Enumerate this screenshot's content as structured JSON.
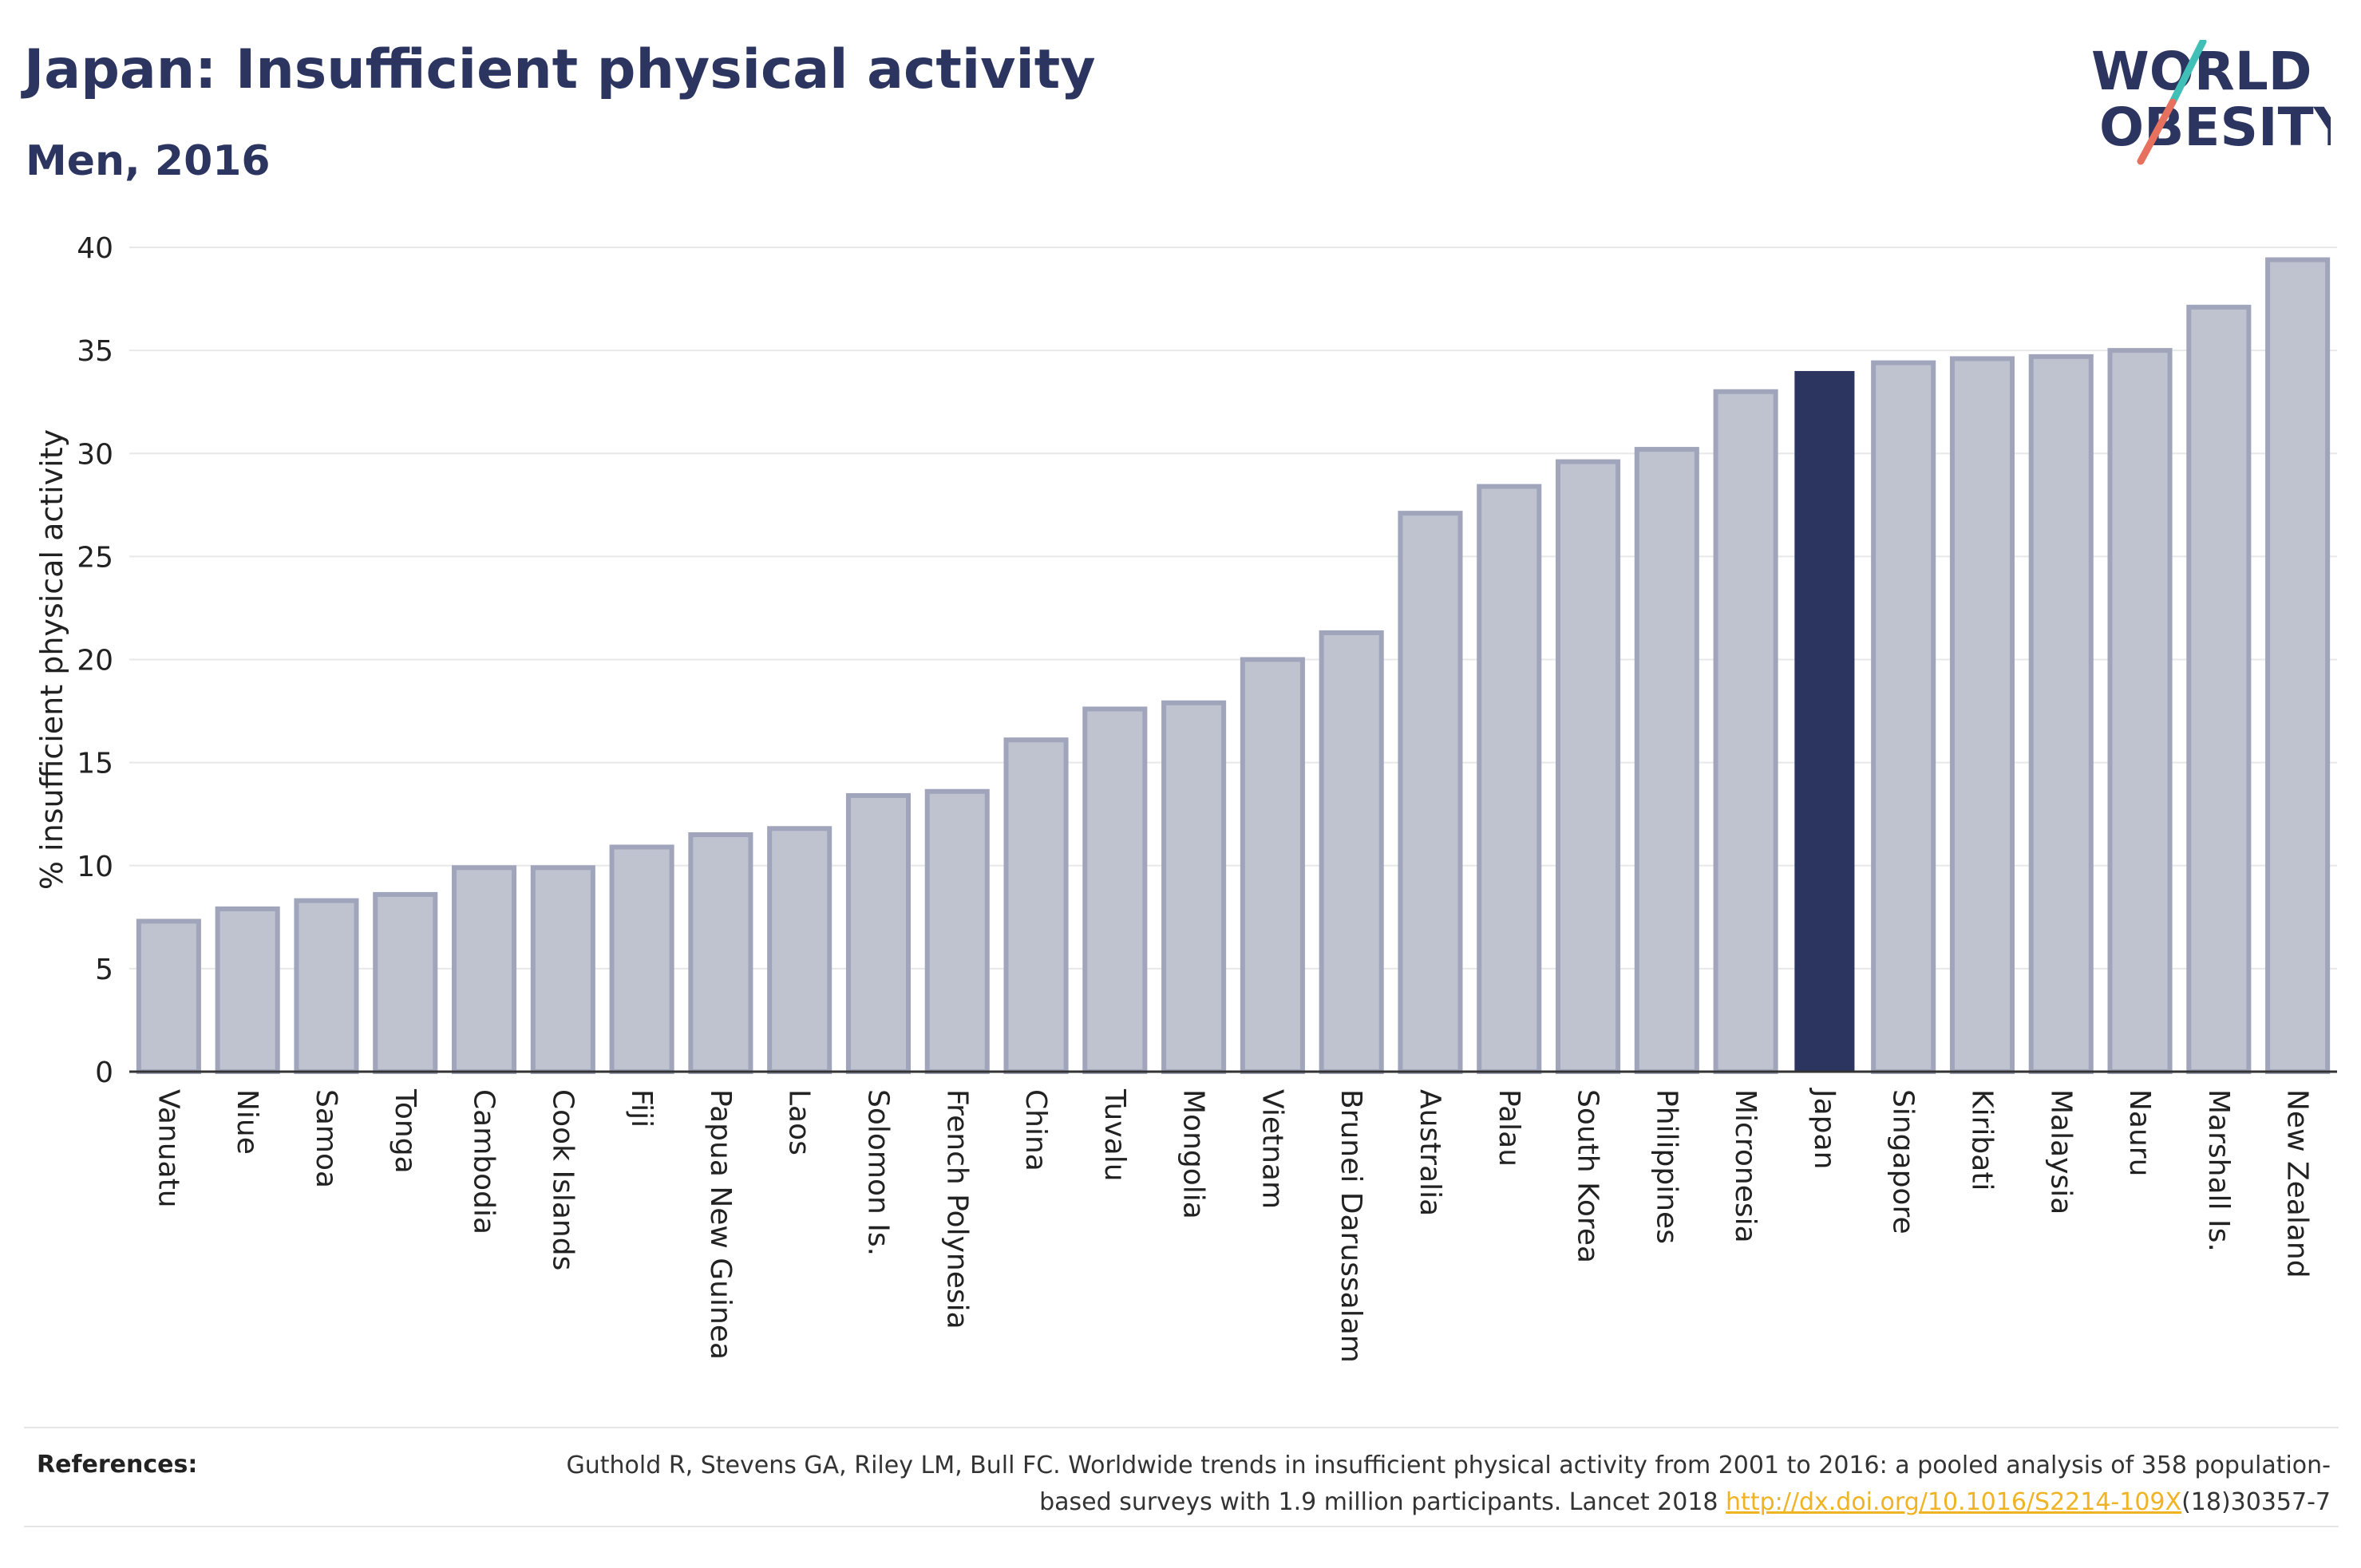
{
  "header": {
    "title": "Japan: Insufficient physical activity",
    "subtitle": "Men, 2016"
  },
  "logo": {
    "line1": "WORLD",
    "line2": "OBESITY",
    "text_color": "#2b3560",
    "slash_colors": [
      "#3fbfb6",
      "#e8705f"
    ]
  },
  "chart_data": {
    "type": "bar",
    "ylabel": "% insufficient physical activity",
    "xlabel": "",
    "ylim": [
      0,
      40
    ],
    "yticks": [
      0,
      5,
      10,
      15,
      20,
      25,
      30,
      35,
      40
    ],
    "grid": true,
    "highlight": "Japan",
    "colors": {
      "bar": "#bfc2cf",
      "bar_edge": "#a0a5bb",
      "highlight": "#2b3560"
    },
    "categories": [
      "Vanuatu",
      "Niue",
      "Samoa",
      "Tonga",
      "Cambodia",
      "Cook Islands",
      "Fiji",
      "Papua New Guinea",
      "Laos",
      "Solomon Is.",
      "French Polynesia",
      "China",
      "Tuvalu",
      "Mongolia",
      "Vietnam",
      "Brunei Darussalam",
      "Australia",
      "Palau",
      "South Korea",
      "Philippines",
      "Micronesia",
      "Japan",
      "Singapore",
      "Kiribati",
      "Malaysia",
      "Nauru",
      "Marshall Is.",
      "New Zealand"
    ],
    "values": [
      7.3,
      7.9,
      8.3,
      8.6,
      9.9,
      9.9,
      10.9,
      11.5,
      11.8,
      13.4,
      13.6,
      16.1,
      17.6,
      17.9,
      20.0,
      21.3,
      27.1,
      28.4,
      29.6,
      30.2,
      33.0,
      34.0,
      34.4,
      34.6,
      34.7,
      35.0,
      37.1,
      39.4
    ]
  },
  "references": {
    "label": "References:",
    "text_before_link": "Guthold R, Stevens GA, Riley LM, Bull FC. Worldwide trends in insufficient physical activity from 2001 to 2016: a pooled analysis of 358 population-based surveys with 1.9 million participants. Lancet 2018 ",
    "link_text": "http://dx.doi.org/10.1016/S2214-109X",
    "text_after_link": "(18)30357-7"
  }
}
